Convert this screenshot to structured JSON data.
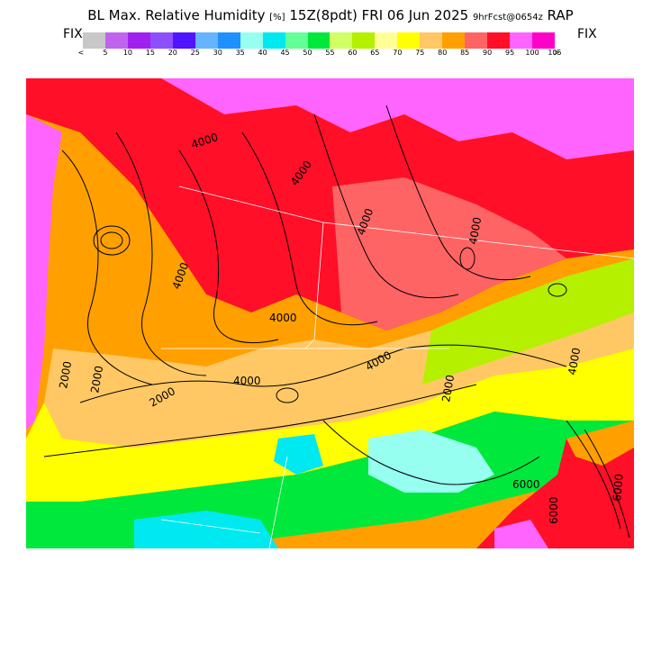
{
  "title": {
    "main": "BL Max. Relative Humidity",
    "units": "[%]",
    "valid": "15Z(8pdt) FRI 06 Jun 2025",
    "forecast": "9hrFcst@0654z",
    "model": "RAP"
  },
  "legend": {
    "fix_left": "FIX",
    "fix_right": "FIX",
    "colors": [
      "#c8c8c8",
      "#c064f0",
      "#a020f0",
      "#8c50ff",
      "#5014ff",
      "#64b4ff",
      "#1e90ff",
      "#96fff0",
      "#00e8f0",
      "#64ff96",
      "#00e83c",
      "#d2ff64",
      "#b4f000",
      "#ffff96",
      "#ffff00",
      "#ffc864",
      "#ffa000",
      "#ff6464",
      "#ff0f28",
      "#ff64ff",
      "#ff00c8"
    ],
    "tick_labels": [
      "<",
      "5",
      "10",
      "15",
      "20",
      "25",
      "30",
      "35",
      "40",
      "45",
      "50",
      "55",
      "60",
      "65",
      "70",
      "75",
      "80",
      "85",
      "90",
      "95",
      "100",
      "105",
      ">"
    ]
  },
  "map": {
    "contour_labels": [
      "4000",
      "4000",
      "4000",
      "4000",
      "4000",
      "4000",
      "2000",
      "2000",
      "2000",
      "2000",
      "4000",
      "6000",
      "6000",
      "6000",
      "4000",
      "4000"
    ]
  }
}
